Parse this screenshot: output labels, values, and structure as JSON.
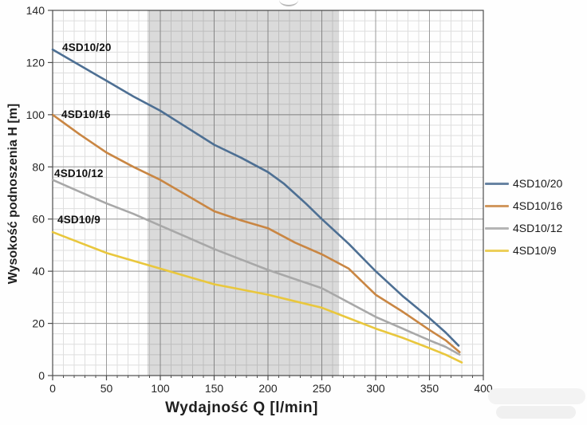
{
  "chart_data": {
    "type": "line",
    "title": "",
    "xlabel": "Wydajność Q [l/min]",
    "ylabel": "Wysokość podnoszenia H [m]",
    "xlim": [
      0,
      400
    ],
    "ylim": [
      0,
      140
    ],
    "x_major_ticks": [
      0,
      50,
      100,
      150,
      200,
      250,
      300,
      350,
      400
    ],
    "y_major_ticks": [
      0,
      20,
      40,
      60,
      80,
      100,
      120,
      140
    ],
    "x_minor_step": 10,
    "y_minor_step": 4,
    "grid": true,
    "legend_position": "right",
    "operating_band": {
      "x_start": 88,
      "x_end": 266,
      "apparent_color": "#dadada"
    },
    "series": [
      {
        "name": "4SD10/20",
        "color": "#4d6f93",
        "points": [
          [
            0,
            125
          ],
          [
            25,
            119
          ],
          [
            50,
            113
          ],
          [
            75,
            107
          ],
          [
            100,
            101.5
          ],
          [
            125,
            95
          ],
          [
            150,
            88.5
          ],
          [
            175,
            83.5
          ],
          [
            200,
            78
          ],
          [
            215,
            73.5
          ],
          [
            235,
            66
          ],
          [
            250,
            60
          ],
          [
            275,
            50.5
          ],
          [
            300,
            40
          ],
          [
            325,
            30.5
          ],
          [
            350,
            22
          ],
          [
            365,
            16.5
          ],
          [
            377,
            11.5
          ]
        ]
      },
      {
        "name": "4SD10/16",
        "color": "#c98643",
        "points": [
          [
            0,
            100
          ],
          [
            25,
            92.5
          ],
          [
            50,
            85.5
          ],
          [
            75,
            80
          ],
          [
            100,
            75
          ],
          [
            125,
            69
          ],
          [
            150,
            63
          ],
          [
            175,
            59.5
          ],
          [
            200,
            56.5
          ],
          [
            225,
            51
          ],
          [
            250,
            46.5
          ],
          [
            275,
            41
          ],
          [
            300,
            31
          ],
          [
            325,
            24.5
          ],
          [
            350,
            17.5
          ],
          [
            365,
            13.5
          ],
          [
            378,
            9
          ]
        ]
      },
      {
        "name": "4SD10/12",
        "color": "#a8a8a8",
        "points": [
          [
            0,
            75
          ],
          [
            25,
            70.5
          ],
          [
            50,
            66
          ],
          [
            75,
            62
          ],
          [
            100,
            57.5
          ],
          [
            125,
            53
          ],
          [
            150,
            48.5
          ],
          [
            175,
            44.5
          ],
          [
            200,
            40.5
          ],
          [
            225,
            37
          ],
          [
            250,
            33.5
          ],
          [
            275,
            28
          ],
          [
            300,
            22.5
          ],
          [
            325,
            18
          ],
          [
            350,
            13.5
          ],
          [
            365,
            11
          ],
          [
            378,
            8
          ]
        ]
      },
      {
        "name": "4SD10/9",
        "color": "#e9c73d",
        "points": [
          [
            0,
            55
          ],
          [
            25,
            51
          ],
          [
            50,
            47
          ],
          [
            75,
            44
          ],
          [
            100,
            41
          ],
          [
            125,
            38
          ],
          [
            150,
            35
          ],
          [
            175,
            33
          ],
          [
            200,
            31
          ],
          [
            225,
            28.5
          ],
          [
            250,
            26
          ],
          [
            275,
            22
          ],
          [
            300,
            18
          ],
          [
            325,
            14.5
          ],
          [
            350,
            10.5
          ],
          [
            365,
            8
          ],
          [
            380,
            5
          ]
        ]
      }
    ]
  },
  "colors": {
    "plot_border": "#4d4d4d",
    "major_grid": "#9b9b9b",
    "minor_grid": "#dedede",
    "tick_text": "#262626"
  }
}
